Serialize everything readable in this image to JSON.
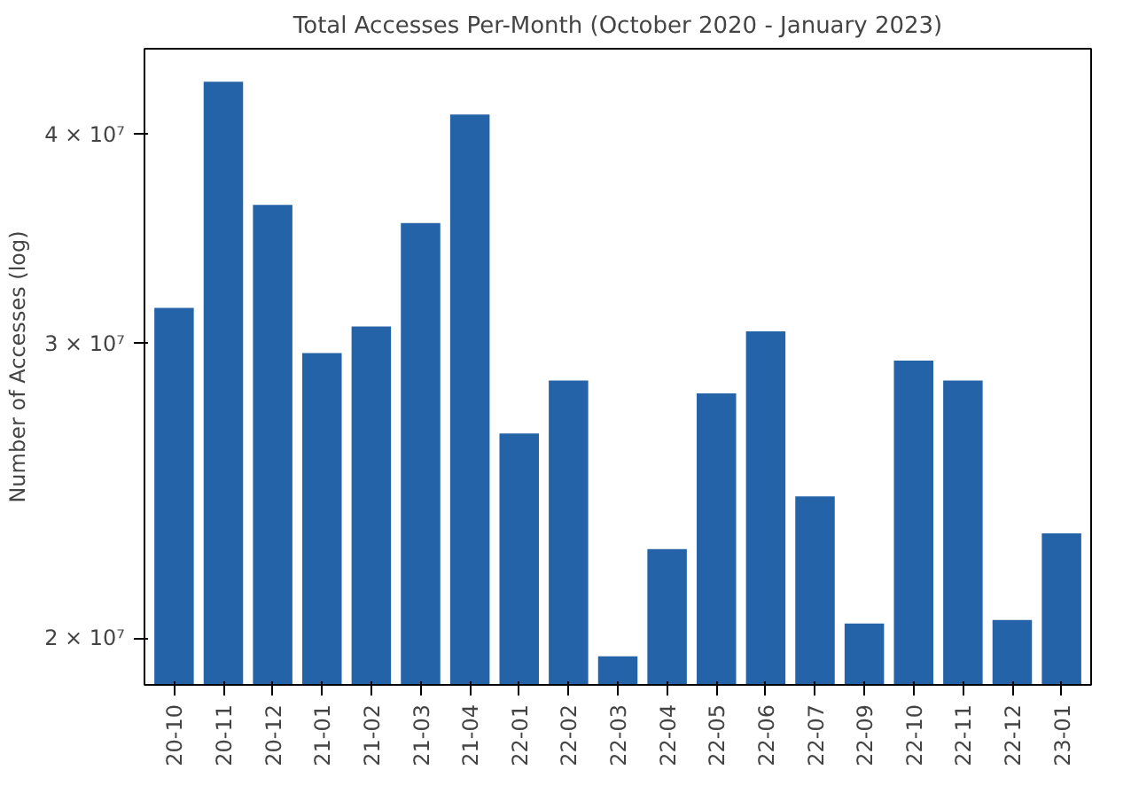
{
  "chart_data": {
    "type": "bar",
    "title": "Total Accesses Per-Month (October 2020 - January 2023)",
    "ylabel": "Number of Accesses (log)",
    "categories": [
      "20-10",
      "20-11",
      "20-12",
      "21-01",
      "21-02",
      "21-03",
      "21-04",
      "22-01",
      "22-02",
      "22-03",
      "22-04",
      "22-05",
      "22-06",
      "22-07",
      "22-09",
      "22-10",
      "22-11",
      "22-12",
      "23-01"
    ],
    "values": [
      31500000,
      43000000,
      36300000,
      29600000,
      30700000,
      35400000,
      41100000,
      26500000,
      28500000,
      19500000,
      22600000,
      28000000,
      30500000,
      24300000,
      20400000,
      29300000,
      28500000,
      20500000,
      23100000
    ],
    "color": "#2563a8",
    "log": true,
    "ylim": [
      18750000,
      45000000
    ],
    "yticks": [
      {
        "value": 20000000,
        "label": "2 × 10⁷"
      },
      {
        "value": 30000000,
        "label": "3 × 10⁷"
      },
      {
        "value": 40000000,
        "label": "4 × 10⁷"
      }
    ],
    "grid": false
  }
}
